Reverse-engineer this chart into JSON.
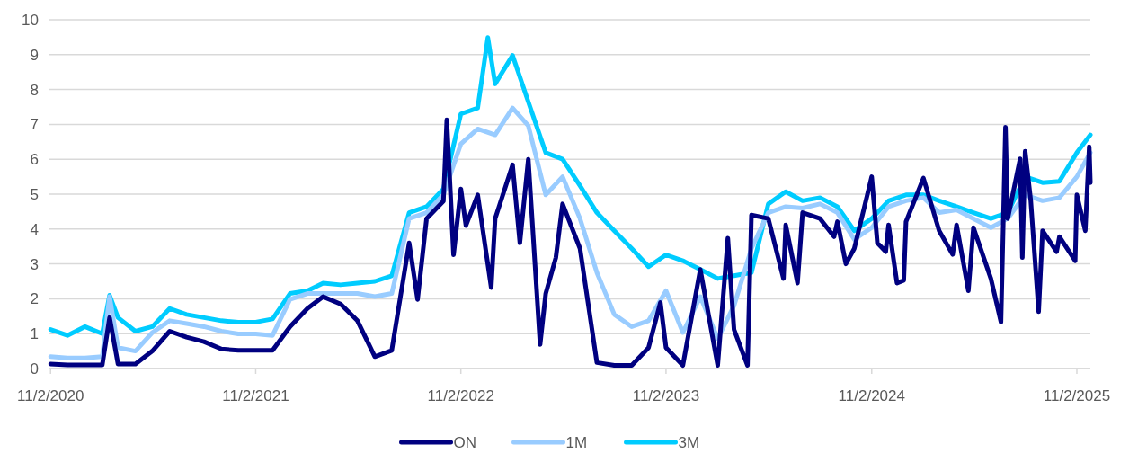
{
  "chart_data": {
    "type": "line",
    "xlim": [
      "2020-10-31",
      "2025-11-26"
    ],
    "xticks": [
      {
        "value": "2020-11-02",
        "label": "11/2/2020"
      },
      {
        "value": "2021-11-02",
        "label": "11/2/2021"
      },
      {
        "value": "2022-11-02",
        "label": "11/2/2022"
      },
      {
        "value": "2023-11-02",
        "label": "11/2/2023"
      },
      {
        "value": "2024-11-02",
        "label": "11/2/2024"
      },
      {
        "value": "2025-11-02",
        "label": "11/2/2025"
      }
    ],
    "ylim": [
      0,
      10
    ],
    "yticks": [
      0,
      1,
      2,
      3,
      4,
      5,
      6,
      7,
      8,
      9,
      10
    ],
    "grid": "y",
    "legend": "bottom",
    "marker": "none",
    "line_style": "solid",
    "series": [
      {
        "name": "ON",
        "color": "#000080",
        "x": [
          "2020-11-02",
          "2020-12-02",
          "2021-01-02",
          "2021-02-02",
          "2021-02-15",
          "2021-03-02",
          "2021-04-02",
          "2021-05-02",
          "2021-06-02",
          "2021-07-02",
          "2021-08-02",
          "2021-09-02",
          "2021-10-02",
          "2021-11-02",
          "2021-12-02",
          "2022-01-02",
          "2022-02-02",
          "2022-03-02",
          "2022-04-02",
          "2022-05-02",
          "2022-06-02",
          "2022-07-02",
          "2022-08-02",
          "2022-08-17",
          "2022-09-02",
          "2022-10-02",
          "2022-10-08",
          "2022-10-20",
          "2022-11-02",
          "2022-11-11",
          "2022-12-02",
          "2022-12-26",
          "2023-01-02",
          "2023-02-02",
          "2023-02-15",
          "2023-03-02",
          "2023-03-23",
          "2023-04-02",
          "2023-04-20",
          "2023-05-02",
          "2023-06-02",
          "2023-07-02",
          "2023-08-02",
          "2023-09-02",
          "2023-10-02",
          "2023-10-23",
          "2023-11-02",
          "2023-12-02",
          "2024-01-02",
          "2024-02-02",
          "2024-02-20",
          "2024-03-02",
          "2024-03-26",
          "2024-04-02",
          "2024-05-02",
          "2024-05-29",
          "2024-06-02",
          "2024-06-23",
          "2024-07-02",
          "2024-08-02",
          "2024-08-27",
          "2024-09-02",
          "2024-09-17",
          "2024-10-02",
          "2024-11-02",
          "2024-11-12",
          "2024-11-27",
          "2024-12-02",
          "2024-12-17",
          "2024-12-29",
          "2025-01-02",
          "2025-02-02",
          "2025-03-02",
          "2025-03-26",
          "2025-04-02",
          "2025-04-23",
          "2025-05-02",
          "2025-06-02",
          "2025-06-20",
          "2025-06-28",
          "2025-07-02",
          "2025-07-24",
          "2025-07-28",
          "2025-08-02",
          "2025-08-12",
          "2025-08-26",
          "2025-09-02",
          "2025-09-27",
          "2025-10-02",
          "2025-10-30",
          "2025-11-02",
          "2025-11-17",
          "2025-11-24",
          "2025-11-26"
        ],
        "values": [
          0.13,
          0.1,
          0.1,
          0.1,
          1.46,
          0.13,
          0.13,
          0.5,
          1.07,
          0.9,
          0.77,
          0.56,
          0.52,
          0.52,
          0.52,
          1.2,
          1.72,
          2.06,
          1.85,
          1.37,
          0.34,
          0.52,
          3.6,
          1.98,
          4.3,
          4.8,
          7.13,
          3.26,
          5.15,
          4.1,
          4.98,
          2.32,
          4.3,
          5.84,
          3.6,
          6.0,
          0.69,
          2.15,
          3.18,
          4.72,
          3.44,
          0.17,
          0.09,
          0.09,
          0.6,
          1.89,
          0.6,
          0.09,
          2.84,
          0.09,
          3.74,
          1.12,
          0.09,
          4.4,
          4.3,
          2.58,
          4.12,
          2.45,
          4.47,
          4.3,
          3.78,
          4.21,
          3.0,
          3.44,
          5.5,
          3.6,
          3.35,
          4.12,
          2.45,
          2.53,
          4.21,
          5.46,
          3.95,
          3.27,
          4.12,
          2.23,
          4.04,
          2.58,
          1.33,
          6.92,
          4.3,
          6.01,
          3.18,
          6.23,
          4.81,
          1.63,
          3.95,
          3.35,
          3.78,
          3.09,
          4.98,
          3.95,
          6.36,
          5.33
        ]
      },
      {
        "name": "1M",
        "color": "#99ccff",
        "x": [
          "2020-11-02",
          "2020-12-02",
          "2021-01-02",
          "2021-02-02",
          "2021-02-15",
          "2021-03-02",
          "2021-04-02",
          "2021-05-02",
          "2021-06-02",
          "2021-07-02",
          "2021-08-02",
          "2021-09-02",
          "2021-10-02",
          "2021-11-02",
          "2021-12-02",
          "2022-01-02",
          "2022-02-02",
          "2022-03-02",
          "2022-04-02",
          "2022-05-02",
          "2022-06-02",
          "2022-07-02",
          "2022-08-02",
          "2022-09-02",
          "2022-10-02",
          "2022-11-02",
          "2022-12-02",
          "2023-01-02",
          "2023-02-02",
          "2023-03-02",
          "2023-04-02",
          "2023-05-02",
          "2023-06-02",
          "2023-07-02",
          "2023-08-02",
          "2023-09-02",
          "2023-10-02",
          "2023-11-02",
          "2023-12-02",
          "2024-01-02",
          "2024-02-02",
          "2024-03-02",
          "2024-04-02",
          "2024-05-02",
          "2024-06-02",
          "2024-07-02",
          "2024-08-02",
          "2024-09-02",
          "2024-10-02",
          "2024-11-02",
          "2024-12-02",
          "2025-01-02",
          "2025-02-02",
          "2025-03-02",
          "2025-04-02",
          "2025-05-02",
          "2025-06-02",
          "2025-07-02",
          "2025-08-02",
          "2025-09-02",
          "2025-10-02",
          "2025-11-02",
          "2025-11-26"
        ],
        "values": [
          0.34,
          0.3,
          0.3,
          0.34,
          2.06,
          0.6,
          0.5,
          1.03,
          1.37,
          1.29,
          1.2,
          1.07,
          0.99,
          0.99,
          0.95,
          1.98,
          2.15,
          2.15,
          2.15,
          2.15,
          2.06,
          2.15,
          4.3,
          4.47,
          4.98,
          6.44,
          6.87,
          6.7,
          7.47,
          6.96,
          4.98,
          5.5,
          4.3,
          2.75,
          1.55,
          1.2,
          1.37,
          2.23,
          1.03,
          2.06,
          0.86,
          1.8,
          3.44,
          4.47,
          4.64,
          4.6,
          4.72,
          4.47,
          3.7,
          4.04,
          4.64,
          4.81,
          4.9,
          4.47,
          4.55,
          4.3,
          4.04,
          4.3,
          4.98,
          4.81,
          4.9,
          5.5,
          6.19
        ]
      },
      {
        "name": "3M",
        "color": "#00ccff",
        "x": [
          "2020-11-02",
          "2020-12-02",
          "2021-01-02",
          "2021-02-02",
          "2021-02-15",
          "2021-03-02",
          "2021-04-02",
          "2021-05-02",
          "2021-06-02",
          "2021-07-02",
          "2021-08-02",
          "2021-09-02",
          "2021-10-02",
          "2021-11-02",
          "2021-12-02",
          "2022-01-02",
          "2022-02-02",
          "2022-03-02",
          "2022-04-02",
          "2022-05-02",
          "2022-06-02",
          "2022-07-02",
          "2022-08-02",
          "2022-09-02",
          "2022-10-02",
          "2022-11-02",
          "2022-12-02",
          "2022-12-20",
          "2023-01-02",
          "2023-02-02",
          "2023-03-02",
          "2023-04-02",
          "2023-05-02",
          "2023-06-02",
          "2023-07-02",
          "2023-08-02",
          "2023-09-02",
          "2023-10-02",
          "2023-11-02",
          "2023-12-02",
          "2024-01-02",
          "2024-02-02",
          "2024-03-02",
          "2024-04-02",
          "2024-05-02",
          "2024-06-02",
          "2024-07-02",
          "2024-08-02",
          "2024-09-02",
          "2024-10-02",
          "2024-11-02",
          "2024-12-02",
          "2025-01-02",
          "2025-02-02",
          "2025-03-02",
          "2025-04-02",
          "2025-05-02",
          "2025-06-02",
          "2025-07-02",
          "2025-08-02",
          "2025-09-02",
          "2025-10-02",
          "2025-11-02",
          "2025-11-26"
        ],
        "values": [
          1.12,
          0.95,
          1.2,
          1.0,
          2.1,
          1.46,
          1.07,
          1.2,
          1.72,
          1.55,
          1.46,
          1.37,
          1.33,
          1.33,
          1.42,
          2.15,
          2.23,
          2.45,
          2.4,
          2.45,
          2.5,
          2.66,
          4.47,
          4.64,
          5.15,
          7.3,
          7.47,
          9.49,
          8.16,
          8.98,
          7.65,
          6.19,
          6.0,
          5.24,
          4.47,
          3.95,
          3.44,
          2.92,
          3.26,
          3.09,
          2.84,
          2.58,
          2.66,
          2.75,
          4.72,
          5.07,
          4.81,
          4.9,
          4.64,
          3.95,
          4.3,
          4.81,
          4.98,
          4.98,
          4.81,
          4.64,
          4.47,
          4.3,
          4.47,
          5.5,
          5.33,
          5.37,
          6.19,
          6.7
        ]
      }
    ]
  }
}
